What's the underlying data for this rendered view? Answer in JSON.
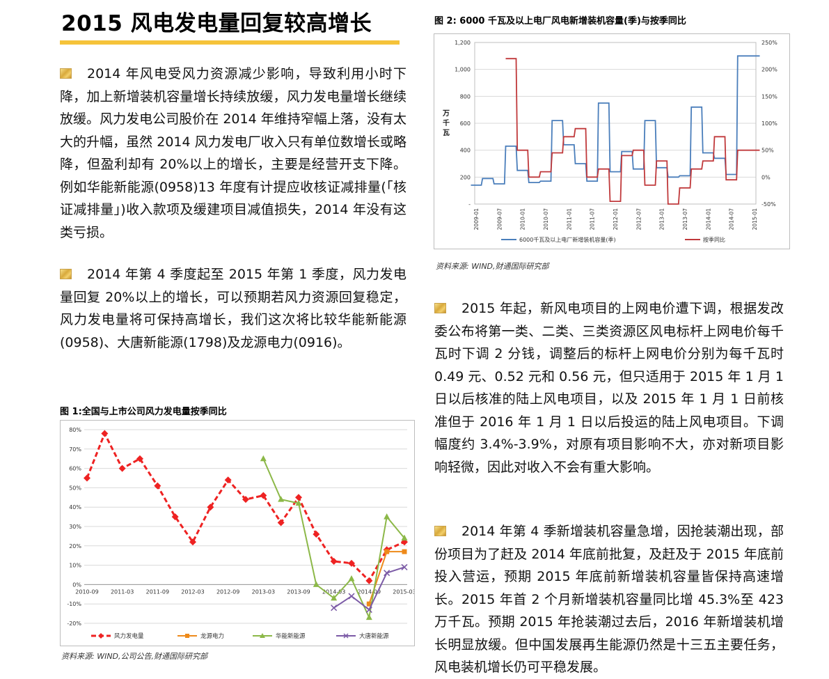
{
  "title": "2015 风电发电量回复较高增长",
  "left_paragraphs": [
    "2014 年风电受风力资源减少影响，导致利用小时下降，加上新增装机容量增长持续放缓，风力发电量增长继续放缓。风力发电公司股价在 2014 年维持窄幅上落，没有太大的升幅，虽然 2014 风力发电厂收入只有单位数增长或略降，但盈利却有 20%以上的增长，主要是经营开支下降。例如华能新能源(0958)13 年度有计提应收核证减排量(「核证减排量」)收入款项及缓建项目减值损失，2014 年没有这类亏损。",
    "2014 年第 4 季度起至 2015 年第 1 季度，风力发电量回复 20%以上的增长，可以预期若风力资源回复稳定，风力发电量将可保持高增长，我们这次将比较华能新能源(0958)、大唐新能源(1798)及龙源电力(0916)。"
  ],
  "right_paragraphs": [
    "2015 年起，新风电项目的上网电价遭下调，根据发改委公布将第一类、二类、三类资源区风电标杆上网电价每千瓦时下调 2 分钱，调整后的标杆上网电价分别为每千瓦时 0.49 元、0.52 元和 0.56 元，但只适用于 2015 年 1 月 1 日以后核准的陆上风电项目，以及 2015 年 1 月 1 日前核准但于 2016 年 1 月 1 日以后投运的陆上风电项目。下调幅度约 3.4%-3.9%，对原有项目影响不大，亦对新项目影响轻微，因此对收入不会有重大影响。",
    "2014 年第 4 季新增装机容量急增，因抢装潮出现，部份项目为了赶及 2014 年底前批复，及赶及于 2015 年底前投入营运，预期 2015 年底前新增装机容量皆保持高速增长。2015 年首 2 个月新增装机容量同比增 45.3%至 423 万千瓦。预期 2015 年抢装潮过去后，2016 年新增装机增长明显放缓。但中国发展再生能源仍然是十三五主要任务，风电装机增长仍可平稳发展。"
  ],
  "figures": {
    "fig1": {
      "title": "图 1:全国与上市公司风力发电量按季同比",
      "source": "资料来源: WIND,公司公告,财通国际研究部"
    },
    "fig2": {
      "title": "图 2: 6000 千瓦及以上电厂风电新增装机容量(季)与按季同比",
      "source": "资料来源: WIND,财通国际研究部"
    }
  },
  "chart_data": [
    {
      "type": "line",
      "categories": [
        "2010-09",
        "2010-12",
        "2011-03",
        "2011-06",
        "2011-09",
        "2011-12",
        "2012-03",
        "2012-06",
        "2012-09",
        "2012-12",
        "2013-03",
        "2013-06",
        "2013-09",
        "2013-12",
        "2014-03",
        "2014-06",
        "2014-09",
        "2014-12",
        "2015-03"
      ],
      "x_tick_labels": [
        "2010-09",
        "2011-03",
        "2011-09",
        "2012-03",
        "2012-09",
        "2013-03",
        "2013-09",
        "2014-03",
        "2014-09",
        "2015-03"
      ],
      "y_ticks": [
        "80%",
        "70%",
        "60%",
        "50%",
        "40%",
        "30%",
        "20%",
        "10%",
        "0%",
        "-10%",
        "-20%"
      ],
      "ylim": [
        -20,
        80
      ],
      "series": [
        {
          "name": "风力发电量",
          "color": "#ee2222",
          "values": [
            55,
            78,
            60,
            65,
            51,
            35,
            22,
            40,
            54,
            44,
            46,
            32,
            45,
            26,
            12,
            11,
            2,
            18,
            22
          ]
        },
        {
          "name": "龙源电力",
          "color": "#ee8a1a",
          "values": [
            null,
            null,
            null,
            null,
            null,
            null,
            null,
            null,
            null,
            null,
            null,
            null,
            null,
            null,
            null,
            null,
            -10,
            17,
            17
          ]
        },
        {
          "name": "华能新能源",
          "color": "#8cb848",
          "values": [
            null,
            null,
            null,
            null,
            null,
            null,
            null,
            null,
            null,
            null,
            65,
            44,
            42,
            0,
            -7,
            3,
            -17,
            35,
            24
          ]
        },
        {
          "name": "大唐新能源",
          "color": "#7b5aa6",
          "values": [
            null,
            null,
            null,
            null,
            null,
            null,
            null,
            null,
            null,
            null,
            null,
            null,
            null,
            null,
            -12,
            -6,
            -13,
            6,
            9
          ]
        }
      ]
    },
    {
      "type": "line",
      "categories": [
        "2009-01",
        "2009-04",
        "2009-07",
        "2009-10",
        "2010-01",
        "2010-04",
        "2010-07",
        "2010-10",
        "2011-01",
        "2011-04",
        "2011-07",
        "2011-10",
        "2012-01",
        "2012-04",
        "2012-07",
        "2012-10",
        "2013-01",
        "2013-04",
        "2013-07",
        "2013-10",
        "2014-01",
        "2014-04",
        "2014-07",
        "2014-10",
        "2015-01"
      ],
      "x_tick_labels": [
        "2009-01",
        "2009-07",
        "2010-01",
        "2010-07",
        "2011-01",
        "2011-07",
        "2012-01",
        "2012-07",
        "2013-01",
        "2013-07",
        "2014-01",
        "2014-07",
        "2015-01"
      ],
      "ylabel": "万千瓦",
      "y_left_ticks": [
        "1,200",
        "1,000",
        "800",
        "600",
        "400",
        "200",
        "-"
      ],
      "y_right_ticks": [
        "250%",
        "200%",
        "150%",
        "100%",
        "50%",
        "0%",
        "-50%"
      ],
      "ylim_left": [
        0,
        1200
      ],
      "ylim_right": [
        -50,
        250
      ],
      "series": [
        {
          "name": "6000千瓦及以上电厂新增装机容量(季)",
          "color": "#4a7ebb",
          "axis": "left",
          "values": [
            140,
            190,
            150,
            430,
            250,
            160,
            170,
            620,
            440,
            300,
            170,
            750,
            240,
            390,
            260,
            620,
            270,
            200,
            210,
            720,
            380,
            340,
            220,
            1100,
            1100
          ]
        },
        {
          "name": "按季同比",
          "color": "#c0393b",
          "axis": "right",
          "values": [
            null,
            null,
            null,
            220,
            50,
            0,
            10,
            45,
            75,
            90,
            0,
            15,
            -45,
            40,
            50,
            -15,
            30,
            -50,
            -20,
            15,
            30,
            75,
            -5,
            50,
            50
          ]
        }
      ]
    }
  ]
}
